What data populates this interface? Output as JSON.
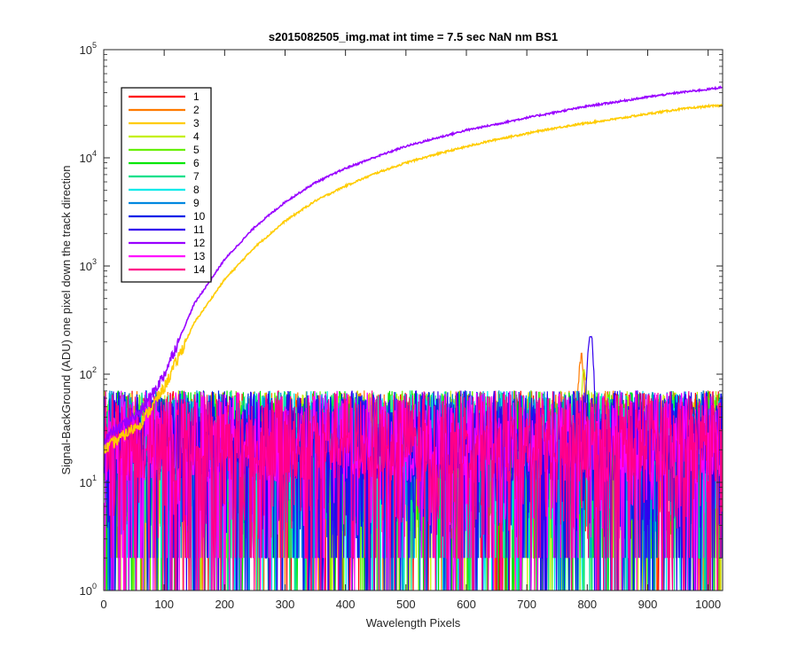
{
  "chart_data": {
    "type": "line",
    "title": "s2015082505_img.mat int time = 7.5 sec  NaN nm BS1",
    "xlabel": "Wavelength Pixels",
    "ylabel": "Signal-BackGround (ADU) one pixel down the track direction",
    "xlim": [
      0,
      1024
    ],
    "ylim": [
      1,
      100000
    ],
    "yscale": "log",
    "grid": false,
    "legend_position": "top-left",
    "x_ticks": [
      "0",
      "100",
      "200",
      "300",
      "400",
      "500",
      "600",
      "700",
      "800",
      "900",
      "1000"
    ],
    "y_ticks": [
      {
        "base": "10",
        "exp": "0"
      },
      {
        "base": "10",
        "exp": "1"
      },
      {
        "base": "10",
        "exp": "2"
      },
      {
        "base": "10",
        "exp": "3"
      },
      {
        "base": "10",
        "exp": "4"
      },
      {
        "base": "10",
        "exp": "5"
      }
    ],
    "series": [
      {
        "name": "1",
        "color": "#ff0000",
        "kind": "noise"
      },
      {
        "name": "2",
        "color": "#ff7b00",
        "kind": "noise",
        "peak_x": 790,
        "peak_y": 150
      },
      {
        "name": "3",
        "color": "#ffcc00",
        "kind": "signal",
        "points": [
          [
            0,
            20
          ],
          [
            60,
            35
          ],
          [
            80,
            50
          ],
          [
            100,
            75
          ],
          [
            150,
            300
          ],
          [
            200,
            750
          ],
          [
            250,
            1500
          ],
          [
            300,
            2600
          ],
          [
            350,
            4000
          ],
          [
            400,
            5500
          ],
          [
            450,
            7200
          ],
          [
            500,
            9000
          ],
          [
            550,
            10800
          ],
          [
            600,
            12700
          ],
          [
            650,
            14800
          ],
          [
            700,
            16800
          ],
          [
            750,
            19000
          ],
          [
            800,
            21000
          ],
          [
            850,
            23000
          ],
          [
            900,
            25500
          ],
          [
            950,
            28000
          ],
          [
            1000,
            30000
          ],
          [
            1024,
            30500
          ]
        ]
      },
      {
        "name": "4",
        "color": "#c4f000",
        "kind": "noise",
        "peak_x": 795,
        "peak_y": 110
      },
      {
        "name": "5",
        "color": "#66f000",
        "kind": "noise"
      },
      {
        "name": "6",
        "color": "#00e600",
        "kind": "noise"
      },
      {
        "name": "7",
        "color": "#00e08a",
        "kind": "noise"
      },
      {
        "name": "8",
        "color": "#00eaea",
        "kind": "noise"
      },
      {
        "name": "9",
        "color": "#0088e0",
        "kind": "noise"
      },
      {
        "name": "10",
        "color": "#0020e8",
        "kind": "noise"
      },
      {
        "name": "11",
        "color": "#3300ee",
        "kind": "noise",
        "peak_x": 805,
        "peak_y": 250
      },
      {
        "name": "12",
        "color": "#9900ff",
        "kind": "signal",
        "points": [
          [
            0,
            25
          ],
          [
            60,
            45
          ],
          [
            80,
            65
          ],
          [
            100,
            100
          ],
          [
            150,
            450
          ],
          [
            200,
            1150
          ],
          [
            250,
            2300
          ],
          [
            300,
            3900
          ],
          [
            350,
            5900
          ],
          [
            400,
            8000
          ],
          [
            450,
            10200
          ],
          [
            500,
            12800
          ],
          [
            550,
            15200
          ],
          [
            600,
            18000
          ],
          [
            650,
            20500
          ],
          [
            700,
            23500
          ],
          [
            750,
            26500
          ],
          [
            800,
            30000
          ],
          [
            850,
            33000
          ],
          [
            900,
            36500
          ],
          [
            950,
            40000
          ],
          [
            1000,
            43000
          ],
          [
            1024,
            45000
          ]
        ]
      },
      {
        "name": "13",
        "color": "#ff00ff",
        "kind": "noise"
      },
      {
        "name": "14",
        "color": "#ff0088",
        "kind": "noise"
      }
    ]
  }
}
